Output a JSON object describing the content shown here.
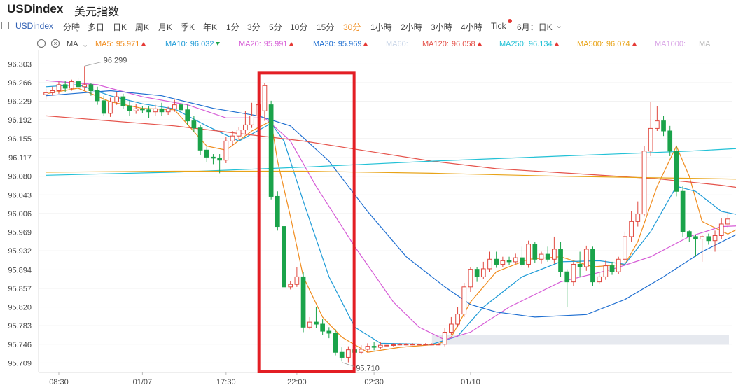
{
  "header": {
    "symbol": "USDindex",
    "name": "美元指数"
  },
  "timeframes": {
    "symbol_chip": "USDindex",
    "items": [
      "分時",
      "多日",
      "日K",
      "周K",
      "月K",
      "季K",
      "年K",
      "1分",
      "3分",
      "5分",
      "10分",
      "15分",
      "30分",
      "1小時",
      "2小時",
      "3小時",
      "4小時",
      "Tick",
      "6月：日K"
    ],
    "active": "30分"
  },
  "indicator": {
    "name": "MA",
    "lines": [
      {
        "label": "MA5:",
        "value": "95.971",
        "trend": "up",
        "color": "#f08c1e"
      },
      {
        "label": "MA10:",
        "value": "96.032",
        "trend": "down",
        "color": "#1e9bd7"
      },
      {
        "label": "MA20:",
        "value": "95.991",
        "trend": "up",
        "color": "#d65bd6"
      },
      {
        "label": "MA30:",
        "value": "95.969",
        "trend": "up",
        "color": "#1f6fd1"
      },
      {
        "label": "MA60:",
        "value": "",
        "trend": "",
        "color": "#c9d6e8"
      },
      {
        "label": "MA120:",
        "value": "96.058",
        "trend": "up",
        "color": "#e5534b"
      },
      {
        "label": "MA250:",
        "value": "96.134",
        "trend": "up",
        "color": "#22c1d6"
      },
      {
        "label": "MA500:",
        "value": "96.074",
        "trend": "up",
        "color": "#e8a317"
      },
      {
        "label": "MA1000:",
        "value": "",
        "trend": "",
        "color": "#d9a5e6"
      },
      {
        "label": "MA",
        "value": "",
        "trend": "",
        "color": "#bbbbbb"
      }
    ]
  },
  "chart_data": {
    "type": "candlestick",
    "y_ticks": [
      "96.303",
      "96.266",
      "96.229",
      "96.192",
      "96.155",
      "96.117",
      "96.080",
      "96.043",
      "96.006",
      "95.969",
      "95.932",
      "95.894",
      "95.857",
      "95.820",
      "95.783",
      "95.746",
      "95.709"
    ],
    "ylim": [
      95.69,
      96.33
    ],
    "x_ticks": [
      "08:30",
      "01/07",
      "17:30",
      "22:00",
      "02:30",
      "01/10"
    ],
    "annotations": {
      "high_label": "96.299",
      "low_label": "95.710"
    },
    "highlight_box": {
      "from_candle": 34,
      "to_candle": 47
    },
    "colors": {
      "up": "#e0483f",
      "down": "#1aa34a"
    },
    "candles": [
      [
        96.242,
        96.246,
        96.254,
        96.232
      ],
      [
        96.246,
        96.25,
        96.258,
        96.24
      ],
      [
        96.25,
        96.262,
        96.268,
        96.244
      ],
      [
        96.262,
        96.255,
        96.27,
        96.248
      ],
      [
        96.255,
        96.268,
        96.272,
        96.25
      ],
      [
        96.268,
        96.258,
        96.275,
        96.252
      ],
      [
        96.258,
        96.262,
        96.299,
        96.25
      ],
      [
        96.262,
        96.25,
        96.266,
        96.24
      ],
      [
        96.25,
        96.23,
        96.258,
        96.222
      ],
      [
        96.23,
        96.205,
        96.24,
        96.2
      ],
      [
        96.205,
        96.228,
        96.236,
        96.198
      ],
      [
        96.228,
        96.238,
        96.248,
        96.222
      ],
      [
        96.238,
        96.22,
        96.244,
        96.214
      ],
      [
        96.22,
        96.21,
        96.23,
        96.2
      ],
      [
        96.21,
        96.214,
        96.224,
        96.204
      ],
      [
        96.214,
        96.212,
        96.22,
        96.206
      ],
      [
        96.212,
        96.208,
        96.22,
        96.196
      ],
      [
        96.208,
        96.214,
        96.222,
        96.2
      ],
      [
        96.214,
        96.208,
        96.226,
        96.2
      ],
      [
        96.208,
        96.214,
        96.218,
        96.202
      ],
      [
        96.214,
        96.222,
        96.232,
        96.208
      ],
      [
        96.222,
        96.212,
        96.23,
        96.204
      ],
      [
        96.212,
        96.19,
        96.222,
        96.182
      ],
      [
        96.19,
        96.176,
        96.2,
        96.168
      ],
      [
        96.176,
        96.132,
        96.182,
        96.122
      ],
      [
        96.132,
        96.118,
        96.14,
        96.108
      ],
      [
        96.118,
        96.116,
        96.124,
        96.104
      ],
      [
        96.116,
        96.112,
        96.124,
        96.086
      ],
      [
        96.112,
        96.15,
        96.158,
        96.106
      ],
      [
        96.15,
        96.16,
        96.17,
        96.14
      ],
      [
        96.16,
        96.172,
        96.178,
        96.152
      ],
      [
        96.172,
        96.182,
        96.21,
        96.164
      ],
      [
        96.182,
        96.2,
        96.226,
        96.176
      ],
      [
        96.2,
        96.222,
        96.228,
        96.19
      ],
      [
        96.21,
        96.26,
        96.266,
        96.19
      ],
      [
        96.222,
        96.04,
        96.23,
        96.034
      ],
      [
        96.04,
        95.98,
        96.05,
        95.972
      ],
      [
        95.98,
        95.86,
        95.99,
        95.85
      ],
      [
        95.86,
        95.865,
        95.872,
        95.855
      ],
      [
        95.865,
        95.88,
        95.9,
        95.86
      ],
      [
        95.88,
        95.78,
        95.89,
        95.77
      ],
      [
        95.78,
        95.79,
        95.8,
        95.776
      ],
      [
        95.79,
        95.786,
        95.82,
        95.778
      ],
      [
        95.786,
        95.772,
        95.796,
        95.764
      ],
      [
        95.772,
        95.768,
        95.78,
        95.758
      ],
      [
        95.768,
        95.73,
        95.776,
        95.724
      ],
      [
        95.73,
        95.72,
        95.74,
        95.712
      ],
      [
        95.72,
        95.735,
        95.742,
        95.71
      ],
      [
        95.735,
        95.73,
        95.745,
        95.724
      ],
      [
        95.73,
        95.736,
        95.744,
        95.726
      ],
      [
        95.736,
        95.742,
        95.748,
        95.73
      ],
      [
        95.742,
        95.74,
        95.75,
        95.734
      ],
      [
        95.74,
        95.744,
        95.75,
        95.736
      ],
      [
        95.744,
        95.744,
        95.748,
        95.74
      ],
      [
        95.744,
        95.745,
        95.748,
        95.742
      ],
      [
        95.745,
        95.746,
        95.748,
        95.744
      ],
      [
        95.746,
        95.746,
        95.748,
        95.744
      ],
      [
        95.746,
        95.746,
        95.748,
        95.744
      ],
      [
        95.746,
        95.746,
        95.748,
        95.744
      ],
      [
        95.746,
        95.746,
        95.748,
        95.744
      ],
      [
        95.746,
        95.746,
        95.748,
        95.744
      ],
      [
        95.746,
        95.746,
        95.748,
        95.744
      ],
      [
        95.746,
        95.77,
        95.778,
        95.742
      ],
      [
        95.77,
        95.786,
        95.8,
        95.764
      ],
      [
        95.786,
        95.806,
        95.82,
        95.78
      ],
      [
        95.806,
        95.86,
        95.868,
        95.8
      ],
      [
        95.86,
        95.895,
        95.9,
        95.85
      ],
      [
        95.895,
        95.88,
        95.9,
        95.87
      ],
      [
        95.88,
        95.896,
        95.91,
        95.876
      ],
      [
        95.896,
        95.915,
        95.93,
        95.89
      ],
      [
        95.915,
        95.905,
        95.93,
        95.898
      ],
      [
        95.905,
        95.912,
        95.92,
        95.9
      ],
      [
        95.912,
        95.91,
        95.92,
        95.904
      ],
      [
        95.91,
        95.918,
        95.926,
        95.906
      ],
      [
        95.918,
        95.905,
        95.94,
        95.9
      ],
      [
        95.905,
        95.945,
        95.952,
        95.898
      ],
      [
        95.945,
        95.915,
        95.95,
        95.908
      ],
      [
        95.915,
        95.925,
        95.93,
        95.906
      ],
      [
        95.925,
        95.915,
        95.94,
        95.91
      ],
      [
        95.915,
        95.935,
        95.96,
        95.906
      ],
      [
        95.935,
        95.89,
        95.95,
        95.88
      ],
      [
        95.89,
        95.87,
        95.895,
        95.82
      ],
      [
        95.87,
        95.905,
        95.91,
        95.862
      ],
      [
        95.905,
        95.9,
        95.93,
        95.88
      ],
      [
        95.9,
        95.935,
        95.942,
        95.892
      ],
      [
        95.935,
        95.87,
        95.94,
        95.862
      ],
      [
        95.87,
        95.88,
        95.89,
        95.866
      ],
      [
        95.88,
        95.902,
        95.912,
        95.874
      ],
      [
        95.902,
        95.89,
        95.91,
        95.884
      ],
      [
        95.89,
        95.915,
        95.92,
        95.886
      ],
      [
        95.915,
        95.96,
        95.97,
        95.906
      ],
      [
        95.96,
        95.99,
        96.01,
        95.95
      ],
      [
        95.99,
        96.005,
        96.03,
        95.98
      ],
      [
        96.005,
        96.13,
        96.14,
        96.0
      ],
      [
        96.13,
        96.175,
        96.228,
        96.12
      ],
      [
        96.175,
        96.19,
        96.22,
        96.17
      ],
      [
        96.19,
        96.17,
        96.2,
        96.16
      ],
      [
        96.17,
        96.13,
        96.18,
        96.12
      ],
      [
        96.13,
        96.05,
        96.14,
        96.04
      ],
      [
        96.05,
        95.97,
        96.06,
        95.96
      ],
      [
        95.97,
        95.96,
        95.972,
        95.95
      ],
      [
        95.96,
        95.955,
        95.964,
        95.92
      ],
      [
        95.955,
        95.96,
        95.964,
        95.91
      ],
      [
        95.96,
        95.952,
        95.966,
        95.944
      ],
      [
        95.952,
        95.962,
        95.972,
        95.93
      ],
      [
        95.962,
        95.985,
        95.996,
        95.955
      ],
      [
        95.985,
        95.995,
        96.01,
        95.978
      ]
    ],
    "ma_series": [
      {
        "name": "MA5",
        "color": "#f08c1e",
        "points": [
          [
            0,
            96.244
          ],
          [
            5,
            96.255
          ],
          [
            10,
            96.228
          ],
          [
            15,
            96.215
          ],
          [
            20,
            96.212
          ],
          [
            25,
            96.14
          ],
          [
            28,
            96.132
          ],
          [
            32,
            96.17
          ],
          [
            35,
            96.19
          ],
          [
            36,
            96.11
          ],
          [
            38,
            96.0
          ],
          [
            40,
            95.88
          ],
          [
            43,
            95.8
          ],
          [
            46,
            95.76
          ],
          [
            50,
            95.73
          ],
          [
            55,
            95.74
          ],
          [
            61,
            95.746
          ],
          [
            63,
            95.76
          ],
          [
            66,
            95.83
          ],
          [
            70,
            95.89
          ],
          [
            75,
            95.915
          ],
          [
            80,
            95.92
          ],
          [
            85,
            95.9
          ],
          [
            90,
            95.905
          ],
          [
            92,
            95.95
          ],
          [
            95,
            96.06
          ],
          [
            98,
            96.14
          ],
          [
            100,
            96.08
          ],
          [
            102,
            95.99
          ],
          [
            106,
            95.965
          ],
          [
            109,
            95.985
          ]
        ]
      },
      {
        "name": "MA10",
        "color": "#1e9bd7",
        "points": [
          [
            0,
            96.258
          ],
          [
            5,
            96.262
          ],
          [
            10,
            96.24
          ],
          [
            15,
            96.224
          ],
          [
            20,
            96.214
          ],
          [
            25,
            96.18
          ],
          [
            30,
            96.15
          ],
          [
            35,
            96.185
          ],
          [
            37,
            96.15
          ],
          [
            40,
            96.03
          ],
          [
            44,
            95.88
          ],
          [
            48,
            95.78
          ],
          [
            52,
            95.748
          ],
          [
            60,
            95.746
          ],
          [
            64,
            95.762
          ],
          [
            68,
            95.82
          ],
          [
            74,
            95.88
          ],
          [
            80,
            95.91
          ],
          [
            86,
            95.912
          ],
          [
            90,
            95.905
          ],
          [
            94,
            95.97
          ],
          [
            98,
            96.06
          ],
          [
            101,
            96.05
          ],
          [
            105,
            96.01
          ],
          [
            109,
            96.0
          ]
        ]
      },
      {
        "name": "MA20",
        "color": "#d65bd6",
        "points": [
          [
            0,
            96.27
          ],
          [
            8,
            96.262
          ],
          [
            15,
            96.238
          ],
          [
            22,
            96.222
          ],
          [
            28,
            96.196
          ],
          [
            34,
            96.196
          ],
          [
            38,
            96.15
          ],
          [
            42,
            96.06
          ],
          [
            48,
            95.94
          ],
          [
            54,
            95.83
          ],
          [
            58,
            95.78
          ],
          [
            62,
            95.755
          ],
          [
            66,
            95.77
          ],
          [
            72,
            95.82
          ],
          [
            80,
            95.87
          ],
          [
            88,
            95.895
          ],
          [
            94,
            95.92
          ],
          [
            100,
            95.96
          ],
          [
            105,
            95.98
          ],
          [
            109,
            95.982
          ]
        ]
      },
      {
        "name": "MA30",
        "color": "#1f6fd1",
        "points": [
          [
            0,
            96.24
          ],
          [
            10,
            96.25
          ],
          [
            18,
            96.24
          ],
          [
            26,
            96.215
          ],
          [
            33,
            96.2
          ],
          [
            38,
            96.18
          ],
          [
            44,
            96.11
          ],
          [
            50,
            96.01
          ],
          [
            56,
            95.92
          ],
          [
            62,
            95.86
          ],
          [
            66,
            95.825
          ],
          [
            70,
            95.81
          ],
          [
            76,
            95.8
          ],
          [
            84,
            95.805
          ],
          [
            90,
            95.835
          ],
          [
            96,
            95.88
          ],
          [
            102,
            95.93
          ],
          [
            109,
            95.975
          ]
        ]
      },
      {
        "name": "MA120",
        "color": "#e5534b",
        "points": [
          [
            0,
            96.2
          ],
          [
            20,
            96.18
          ],
          [
            40,
            96.15
          ],
          [
            50,
            96.13
          ],
          [
            60,
            96.11
          ],
          [
            70,
            96.095
          ],
          [
            85,
            96.083
          ],
          [
            95,
            96.075
          ],
          [
            105,
            96.062
          ],
          [
            109,
            96.055
          ]
        ]
      },
      {
        "name": "MA250",
        "color": "#22c1d6",
        "points": [
          [
            0,
            96.082
          ],
          [
            20,
            96.088
          ],
          [
            40,
            96.098
          ],
          [
            60,
            96.11
          ],
          [
            80,
            96.12
          ],
          [
            100,
            96.13
          ],
          [
            109,
            96.136
          ]
        ]
      },
      {
        "name": "MA500",
        "color": "#e8a317",
        "points": [
          [
            0,
            96.088
          ],
          [
            20,
            96.09
          ],
          [
            40,
            96.09
          ],
          [
            60,
            96.086
          ],
          [
            80,
            96.08
          ],
          [
            100,
            96.076
          ],
          [
            109,
            96.074
          ]
        ]
      }
    ]
  }
}
